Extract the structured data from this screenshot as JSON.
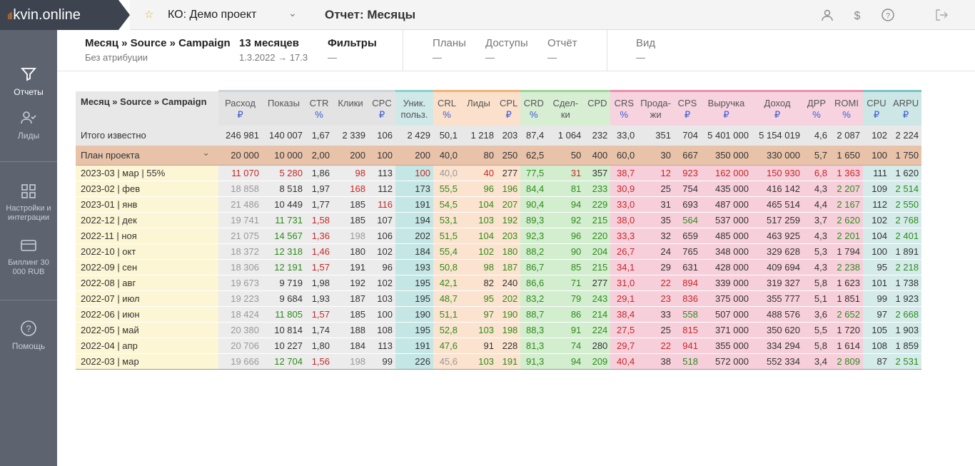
{
  "app": {
    "logo": "kvin.online",
    "project": "КО: Демо проект",
    "report_title": "Отчет: Месяцы"
  },
  "sidebar": [
    {
      "label": "Отчеты",
      "icon": "filter-icon"
    },
    {
      "label": "Лиды",
      "icon": "user-check-icon"
    },
    {
      "label": "Настройки и интеграции",
      "icon": "grid-icon"
    },
    {
      "label": "Биллинг 30 000 RUB",
      "icon": "card-icon"
    },
    {
      "label": "Помощь",
      "icon": "question-icon"
    }
  ],
  "subbar": {
    "grouping": "Месяц » Source » Campaign",
    "attribution": "Без атрибуции",
    "period_title": "13 месяцев",
    "period": "1.3.2022 → 17.3",
    "filters": "Фильтры",
    "filters_val": "—",
    "plans": "Планы",
    "plans_val": "—",
    "access": "Доступы",
    "access_val": "—",
    "report": "Отчёт",
    "report_val": "—",
    "view": "Вид",
    "view_val": "—"
  },
  "table": {
    "first_header": "Месяц » Source » Campaign",
    "columns": [
      {
        "n": "Расход",
        "u": "₽",
        "g": "gray"
      },
      {
        "n": "Показы",
        "u": "",
        "g": "gray"
      },
      {
        "n": "CTR",
        "u": "%",
        "g": "gray"
      },
      {
        "n": "Клики",
        "u": "",
        "g": "gray"
      },
      {
        "n": "CPC",
        "u": "₽",
        "g": "gray"
      },
      {
        "n": "Уник. польз.",
        "u": "",
        "g": "teal"
      },
      {
        "n": "CRL",
        "u": "%",
        "g": "orange"
      },
      {
        "n": "Лиды",
        "u": "",
        "g": "orange"
      },
      {
        "n": "CPL",
        "u": "₽",
        "g": "orange"
      },
      {
        "n": "CRD",
        "u": "%",
        "g": "green"
      },
      {
        "n": "Сдел-ки",
        "u": "",
        "g": "green"
      },
      {
        "n": "CPD",
        "u": "",
        "g": "green"
      },
      {
        "n": "CRS",
        "u": "%",
        "g": "pink"
      },
      {
        "n": "Прода-жи",
        "u": "",
        "g": "pink"
      },
      {
        "n": "CPS",
        "u": "₽",
        "g": "pink"
      },
      {
        "n": "Выручка",
        "u": "₽",
        "g": "pink"
      },
      {
        "n": "Доход",
        "u": "₽",
        "g": "pink"
      },
      {
        "n": "ДРР",
        "u": "%",
        "g": "pink"
      },
      {
        "n": "ROMI",
        "u": "%",
        "g": "pink"
      },
      {
        "n": "CPU",
        "u": "₽",
        "g": "teal2"
      },
      {
        "n": "ARPU",
        "u": "₽",
        "g": "teal2"
      }
    ],
    "total": {
      "label": "Итого известно",
      "v": [
        "246 981",
        "140 007",
        "1,67",
        "2 339",
        "106",
        "2 429",
        "50,1",
        "1 218",
        "203",
        "87,4",
        "1 064",
        "232",
        "33,0",
        "351",
        "704",
        "5 401 000",
        "5 154 019",
        "4,6",
        "2 087",
        "102",
        "2 224"
      ]
    },
    "plan": {
      "label": "План проекта",
      "v": [
        "20 000",
        "10 000",
        "2,00",
        "200",
        "100",
        "200",
        "40,0",
        "80",
        "250",
        "62,5",
        "50",
        "400",
        "60,0",
        "30",
        "667",
        "350 000",
        "330 000",
        "5,7",
        "1 650",
        "100",
        "1 750"
      ]
    },
    "rows": [
      {
        "n": "1",
        "label": "2023-03 | мар | 55%",
        "v": [
          "11 070",
          "5 280",
          "1,86",
          "98",
          "113",
          "100",
          "40,0",
          "40",
          "277",
          "77,5",
          "31",
          "357",
          "38,7",
          "12",
          "923",
          "162 000",
          "150 930",
          "6,8",
          "1 363",
          "111",
          "1 620"
        ],
        "c": [
          "red",
          "red",
          "",
          "red",
          "",
          "red",
          "gry",
          "red",
          "",
          "grn",
          "red",
          "",
          "red",
          "red",
          "red",
          "red",
          "red",
          "red",
          "red",
          "",
          ""
        ]
      },
      {
        "n": "2",
        "label": "2023-02 | фев",
        "v": [
          "18 858",
          "8 518",
          "1,97",
          "168",
          "112",
          "173",
          "55,5",
          "96",
          "196",
          "84,4",
          "81",
          "233",
          "30,9",
          "25",
          "754",
          "435 000",
          "416 142",
          "4,3",
          "2 207",
          "109",
          "2 514"
        ],
        "c": [
          "gry",
          "",
          "",
          "red",
          "",
          "",
          "grn",
          "grn",
          "grn",
          "grn",
          "grn",
          "grn",
          "red",
          "",
          "",
          "",
          "",
          "",
          "grn",
          "",
          "grn"
        ]
      },
      {
        "n": "3",
        "label": "2023-01 | янв",
        "v": [
          "21 486",
          "10 449",
          "1,77",
          "185",
          "116",
          "191",
          "54,5",
          "104",
          "207",
          "90,4",
          "94",
          "229",
          "33,0",
          "31",
          "693",
          "487 000",
          "465 514",
          "4,4",
          "2 167",
          "112",
          "2 550"
        ],
        "c": [
          "gry",
          "",
          "",
          "",
          "red",
          "",
          "grn",
          "grn",
          "grn",
          "grn",
          "grn",
          "grn",
          "red",
          "",
          "",
          "",
          "",
          "",
          "grn",
          "",
          "grn"
        ]
      },
      {
        "n": "4",
        "label": "2022-12 | дек",
        "v": [
          "19 741",
          "11 731",
          "1,58",
          "185",
          "107",
          "194",
          "53,1",
          "103",
          "192",
          "89,3",
          "92",
          "215",
          "38,0",
          "35",
          "564",
          "537 000",
          "517 259",
          "3,7",
          "2 620",
          "102",
          "2 768"
        ],
        "c": [
          "gry",
          "grn",
          "red",
          "",
          "",
          "",
          "grn",
          "grn",
          "grn",
          "grn",
          "grn",
          "grn",
          "red",
          "",
          "grn",
          "",
          "",
          "",
          "grn",
          "",
          "grn"
        ]
      },
      {
        "n": "5",
        "label": "2022-11 | ноя",
        "v": [
          "21 075",
          "14 567",
          "1,36",
          "198",
          "106",
          "202",
          "51,5",
          "104",
          "203",
          "92,3",
          "96",
          "220",
          "33,3",
          "32",
          "659",
          "485 000",
          "463 925",
          "4,3",
          "2 201",
          "104",
          "2 401"
        ],
        "c": [
          "gry",
          "grn",
          "red",
          "gry",
          "",
          "",
          "grn",
          "grn",
          "grn",
          "grn",
          "grn",
          "grn",
          "red",
          "",
          "",
          "",
          "",
          "",
          "grn",
          "",
          "grn"
        ]
      },
      {
        "n": "6",
        "label": "2022-10 | окт",
        "v": [
          "18 372",
          "12 318",
          "1,46",
          "180",
          "102",
          "184",
          "55,4",
          "102",
          "180",
          "88,2",
          "90",
          "204",
          "26,7",
          "24",
          "765",
          "348 000",
          "329 628",
          "5,3",
          "1 794",
          "100",
          "1 891"
        ],
        "c": [
          "gry",
          "grn",
          "red",
          "",
          "",
          "",
          "grn",
          "grn",
          "grn",
          "grn",
          "grn",
          "grn",
          "red",
          "",
          "",
          "",
          "",
          "",
          "",
          "",
          ""
        ]
      },
      {
        "n": "7",
        "label": "2022-09 | сен",
        "v": [
          "18 306",
          "12 191",
          "1,57",
          "191",
          "96",
          "193",
          "50,8",
          "98",
          "187",
          "86,7",
          "85",
          "215",
          "34,1",
          "29",
          "631",
          "428 000",
          "409 694",
          "4,3",
          "2 238",
          "95",
          "2 218"
        ],
        "c": [
          "gry",
          "grn",
          "red",
          "",
          "",
          "",
          "grn",
          "grn",
          "grn",
          "grn",
          "grn",
          "grn",
          "red",
          "",
          "",
          "",
          "",
          "",
          "grn",
          "",
          "grn"
        ]
      },
      {
        "n": "8",
        "label": "2022-08 | авг",
        "v": [
          "19 673",
          "9 719",
          "1,98",
          "192",
          "102",
          "195",
          "42,1",
          "82",
          "240",
          "86,6",
          "71",
          "277",
          "31,0",
          "22",
          "894",
          "339 000",
          "319 327",
          "5,8",
          "1 623",
          "101",
          "1 738"
        ],
        "c": [
          "gry",
          "",
          "",
          "",
          "",
          "",
          "grn",
          "",
          "",
          "grn",
          "grn",
          "",
          "red",
          "red",
          "red",
          "",
          "",
          "",
          "",
          "",
          ""
        ]
      },
      {
        "n": "9",
        "label": "2022-07 | июл",
        "v": [
          "19 223",
          "9 684",
          "1,93",
          "187",
          "103",
          "195",
          "48,7",
          "95",
          "202",
          "83,2",
          "79",
          "243",
          "29,1",
          "23",
          "836",
          "375 000",
          "355 777",
          "5,1",
          "1 851",
          "99",
          "1 923"
        ],
        "c": [
          "gry",
          "",
          "",
          "",
          "",
          "",
          "grn",
          "grn",
          "grn",
          "grn",
          "grn",
          "grn",
          "red",
          "red",
          "red",
          "",
          "",
          "",
          "",
          "",
          ""
        ]
      },
      {
        "n": "10",
        "label": "2022-06 | июн",
        "v": [
          "18 424",
          "11 805",
          "1,57",
          "185",
          "100",
          "190",
          "51,1",
          "97",
          "190",
          "88,7",
          "86",
          "214",
          "38,4",
          "33",
          "558",
          "507 000",
          "488 576",
          "3,6",
          "2 652",
          "97",
          "2 668"
        ],
        "c": [
          "gry",
          "grn",
          "red",
          "",
          "",
          "",
          "grn",
          "grn",
          "grn",
          "grn",
          "grn",
          "grn",
          "red",
          "",
          "grn",
          "",
          "",
          "",
          "grn",
          "",
          "grn"
        ]
      },
      {
        "n": "11",
        "label": "2022-05 | май",
        "v": [
          "20 380",
          "10 814",
          "1,74",
          "188",
          "108",
          "195",
          "52,8",
          "103",
          "198",
          "88,3",
          "91",
          "224",
          "27,5",
          "25",
          "815",
          "371 000",
          "350 620",
          "5,5",
          "1 720",
          "105",
          "1 903"
        ],
        "c": [
          "gry",
          "",
          "",
          "",
          "",
          "",
          "grn",
          "grn",
          "grn",
          "grn",
          "grn",
          "grn",
          "red",
          "",
          "red",
          "",
          "",
          "",
          "",
          "",
          ""
        ]
      },
      {
        "n": "12",
        "label": "2022-04 | апр",
        "v": [
          "20 706",
          "10 227",
          "1,80",
          "184",
          "113",
          "191",
          "47,6",
          "91",
          "228",
          "81,3",
          "74",
          "280",
          "29,7",
          "22",
          "941",
          "355 000",
          "334 294",
          "5,8",
          "1 614",
          "108",
          "1 859"
        ],
        "c": [
          "gry",
          "",
          "",
          "",
          "",
          "",
          "grn",
          "",
          "",
          "grn",
          "grn",
          "",
          "red",
          "red",
          "red",
          "",
          "",
          "",
          "",
          "",
          ""
        ]
      },
      {
        "n": "13",
        "label": "2022-03 | мар",
        "v": [
          "19 666",
          "12 704",
          "1,56",
          "198",
          "99",
          "226",
          "45,6",
          "103",
          "191",
          "91,3",
          "94",
          "209",
          "40,4",
          "38",
          "518",
          "572 000",
          "552 334",
          "3,4",
          "2 809",
          "87",
          "2 531"
        ],
        "c": [
          "gry",
          "grn",
          "red",
          "gry",
          "",
          "",
          "gry",
          "grn",
          "grn",
          "grn",
          "grn",
          "grn",
          "red",
          "",
          "grn",
          "",
          "",
          "",
          "grn",
          "",
          "grn"
        ]
      }
    ]
  }
}
